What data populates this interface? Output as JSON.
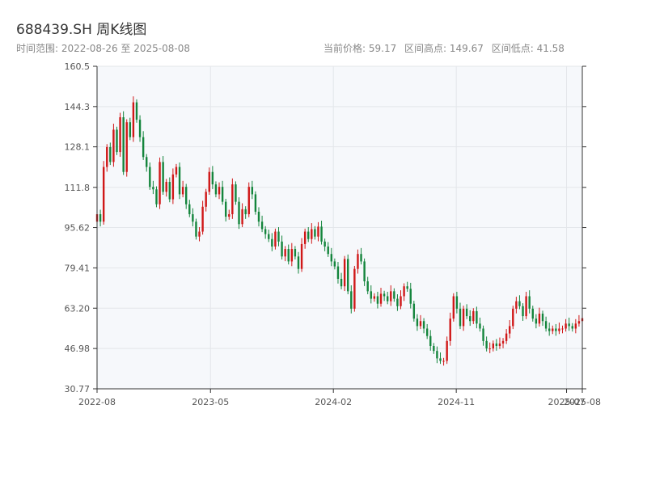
{
  "header": {
    "title": "688439.SH 周K线图",
    "range_label": "时间范围: 2022-08-26 至 2025-08-08",
    "current_price_label": "当前价格: 59.17",
    "high_label": "区间高点: 149.67",
    "low_label": "区间低点: 41.58"
  },
  "colors": {
    "up": "#d01818",
    "down": "#14853c",
    "background": "#f6f8fb",
    "grid": "#e3e6ea",
    "axis": "#333333"
  },
  "chart_data": {
    "type": "candlestick",
    "title": "688439.SH 周K线图",
    "xlabel": "",
    "ylabel": "",
    "ylim": [
      30.77,
      160.5
    ],
    "yticks": [
      "30.77",
      "46.98",
      "63.20",
      "79.41",
      "95.62",
      "111.8",
      "128.1",
      "144.3",
      "160.5"
    ],
    "xticks": [
      {
        "date": "2022-08-26",
        "label": "2022-08"
      },
      {
        "date": "2023-05-05",
        "label": "2023-05"
      },
      {
        "date": "2024-02-02",
        "label": "2024-02"
      },
      {
        "date": "2024-11-01",
        "label": "2024-11"
      },
      {
        "date": "2025-07-04",
        "label": "2025-07"
      },
      {
        "date": "2025-08-08",
        "label": "2025-08"
      }
    ],
    "x_start": "2022-08-26",
    "x_end": "2025-08-08",
    "grid": true,
    "summary": {
      "current": 59.17,
      "high": 149.67,
      "low": 41.58
    },
    "closes": [
      101,
      98,
      120,
      128,
      122,
      135,
      126,
      140,
      118,
      138,
      132,
      146,
      139,
      132,
      124,
      120,
      112,
      111,
      105,
      122,
      110,
      114,
      107,
      117,
      120,
      109,
      112,
      105,
      101,
      98,
      92,
      94,
      104,
      110,
      118,
      113,
      109,
      112,
      106,
      100,
      101,
      113,
      106,
      97,
      103,
      101,
      112,
      109,
      102,
      98,
      95,
      93,
      91,
      88,
      94,
      90,
      84,
      87,
      82,
      87,
      84,
      79,
      89,
      94,
      91,
      95,
      92,
      96,
      90,
      88,
      85,
      82,
      80,
      75,
      72,
      83,
      70,
      63,
      79,
      85,
      82,
      74,
      70,
      67,
      68,
      65,
      69,
      68,
      66,
      70,
      67,
      64,
      68,
      72,
      71,
      65,
      59,
      56,
      58,
      55,
      52,
      48,
      46,
      43,
      42,
      42,
      50,
      59,
      68,
      63,
      56,
      63,
      60,
      58,
      62,
      57,
      55,
      50,
      47,
      47,
      49,
      48,
      49,
      50,
      53,
      56,
      63,
      66,
      64,
      60,
      68,
      63,
      59,
      57,
      61,
      58,
      55,
      54,
      55,
      54,
      55,
      55,
      57,
      56,
      55,
      57,
      58,
      59.17
    ]
  }
}
